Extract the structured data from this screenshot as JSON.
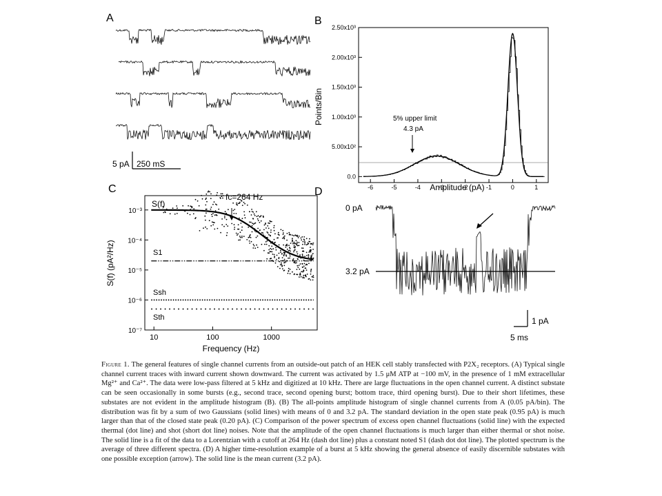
{
  "figure": {
    "panel_labels": [
      "A",
      "B",
      "C",
      "D"
    ],
    "panel_a": {
      "scale_bar_current": "5 pA",
      "scale_bar_time": "250 mS"
    },
    "panel_b": {
      "ylabel": "Points/Bin",
      "xlabel": "Amplitude (pA)",
      "yticks": [
        "0.0",
        "5.00x10²",
        "1.00x10³",
        "1.50x10³",
        "2.00x10³",
        "2.50x10³"
      ],
      "xticks": [
        "-6",
        "-5",
        "-4",
        "-3",
        "-2",
        "-1",
        "0",
        "1"
      ],
      "annotation_line1": "5% upper limit",
      "annotation_line2": "4.3 pA"
    },
    "panel_c": {
      "ylabel": "S(f) (pA²/Hz)",
      "xlabel": "Frequency (Hz)",
      "yticks": [
        "10⁻³",
        "10⁻⁴",
        "10⁻⁵",
        "10⁻⁶",
        "10⁻⁷"
      ],
      "xticks": [
        "10",
        "100",
        "1000"
      ],
      "curve_label": "S(f)",
      "fc_label": "fc=264 Hz",
      "s1_label": "S1",
      "ssh_label": "Ssh",
      "sth_label": "Sth"
    },
    "panel_d": {
      "label_0": "0 pA",
      "label_mean": "3.2 pA",
      "scale_bar_current": "1 pA",
      "scale_bar_time": "5 ms"
    }
  },
  "chart_data": [
    {
      "type": "line",
      "panel": "B",
      "xlabel": "Amplitude (pA)",
      "ylabel": "Points/Bin",
      "xlim": [
        -6.5,
        1.5
      ],
      "ylim": [
        -100,
        2500
      ],
      "series": [
        {
          "x": [
            -6.0,
            -5.0,
            -4.5,
            -4.0,
            -3.5,
            -3.2,
            -3.0,
            -2.5,
            -2.0,
            -1.5,
            -1.0,
            -0.6,
            -0.4,
            -0.2,
            -0.1,
            0.0,
            0.1,
            0.2,
            0.4,
            0.6,
            1.0
          ],
          "y": [
            0,
            20,
            80,
            200,
            320,
            350,
            340,
            260,
            140,
            60,
            40,
            100,
            400,
            1500,
            2100,
            2400,
            2200,
            1600,
            500,
            100,
            5
          ]
        }
      ],
      "annotations": [
        {
          "text": "5% upper limit 4.3 pA",
          "x": -4.3
        }
      ]
    },
    {
      "type": "scatter",
      "panel": "C",
      "xlabel": "Frequency (Hz)",
      "ylabel": "S(f) (pA²/Hz)",
      "xscale": "log",
      "yscale": "log",
      "xlim": [
        7,
        6000
      ],
      "ylim": [
        1e-07,
        0.003
      ],
      "fit_curve": {
        "x": [
          10,
          30,
          100,
          264,
          500,
          1000,
          2000,
          5000
        ],
        "y": [
          0.001,
          0.00098,
          0.00087,
          0.00052,
          0.00024,
          8.5e-05,
          4e-05,
          2.4e-05
        ]
      },
      "constant_lines": [
        {
          "name": "S1",
          "y": 2e-05
        },
        {
          "name": "Ssh",
          "y": 1e-06
        },
        {
          "name": "Sth",
          "y": 5e-07
        }
      ],
      "annotations": [
        {
          "text": "fc=264 Hz",
          "x": 264
        }
      ]
    }
  ],
  "caption": {
    "head": "Figure 1.",
    "body": "The general features of single channel currents from an outside-out patch of an HEK cell stably transfected with P2X₂ receptors. (A) Typical single channel current traces with inward current shown downward. The current was activated by 1.5 μM ATP at −100 mV, in the presence of 1 mM extracellular Mg²⁺ and Ca²⁺. The data were low-pass filtered at 5 kHz and digitized at 10 kHz. There are large fluctuations in the open channel current. A distinct substate can be seen occasionally in some bursts (e.g., second trace, second opening burst; bottom trace, third opening burst). Due to their short lifetimes, these substates are not evident in the amplitude histogram (B). (B) The all-points amplitude histogram of single channel currents from A (0.05 pA/bin). The distribution was fit by a sum of two Gaussians (solid lines) with means of 0 and 3.2 pA. The standard deviation in the open state peak (0.95 pA) is much larger than that of the closed state peak (0.20 pA). (C) Comparison of the power spectrum of excess open channel fluctuations (solid line) with the expected thermal (dot line) and shot (short dot line) noises. Note that the amplitude of the open channel fluctuations is much larger than either thermal or shot noise. The solid line is a fit of the data to a Lorentzian with a cutoff at 264 Hz (dash dot line) plus a constant noted S1 (dash dot dot line). The plotted spectrum is the average of three different spectra. (D) A higher time-resolution example of a burst at 5 kHz showing the general absence of easily discernible substates with one possible exception (arrow). The solid line is the mean current (3.2 pA)."
  }
}
